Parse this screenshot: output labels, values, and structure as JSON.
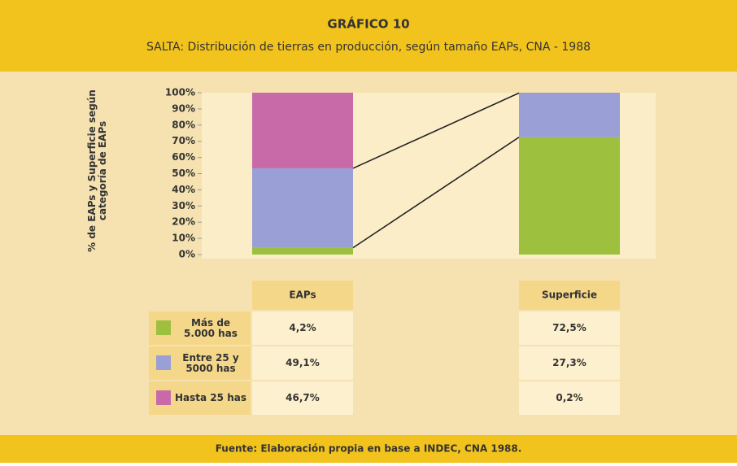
{
  "chart_data": {
    "type": "bar",
    "stacked": true,
    "title": "GRÁFICO 10",
    "subtitle": "SALTA: Distribución de tierras en producción, según tamaño EAPs, CNA - 1988",
    "ylabel": "% de EAPs y Superficie según categoría de EAPs",
    "categories": [
      "EAPs",
      "Superficie"
    ],
    "series": [
      {
        "name": "Más de 5.000 has",
        "color": "#9dc03f",
        "values": [
          4.2,
          72.5
        ],
        "value_labels": [
          "4,2%",
          "72,5%"
        ]
      },
      {
        "name": "Entre 25 y 5000 has",
        "color": "#9a9fd6",
        "values": [
          49.1,
          27.3
        ],
        "value_labels": [
          "49,1%",
          "27,3%"
        ]
      },
      {
        "name": "Hasta 25 has",
        "color": "#c96aa8",
        "values": [
          46.7,
          0.2
        ],
        "value_labels": [
          "46,7%",
          "0,2%"
        ]
      }
    ],
    "ylim": [
      0,
      100
    ],
    "yticks": [
      {
        "value": 0,
        "label": "0%"
      },
      {
        "value": 10,
        "label": "10%"
      },
      {
        "value": 20,
        "label": "20%"
      },
      {
        "value": 30,
        "label": "30%"
      },
      {
        "value": 40,
        "label": "40%"
      },
      {
        "value": 50,
        "label": "50%"
      },
      {
        "value": 60,
        "label": "60%"
      },
      {
        "value": 70,
        "label": "70%"
      },
      {
        "value": 80,
        "label": "80%"
      },
      {
        "value": 90,
        "label": "90%"
      },
      {
        "value": 100,
        "label": "100%"
      }
    ],
    "source": "Fuente: Elaboración propia en base a INDEC, CNA 1988."
  }
}
